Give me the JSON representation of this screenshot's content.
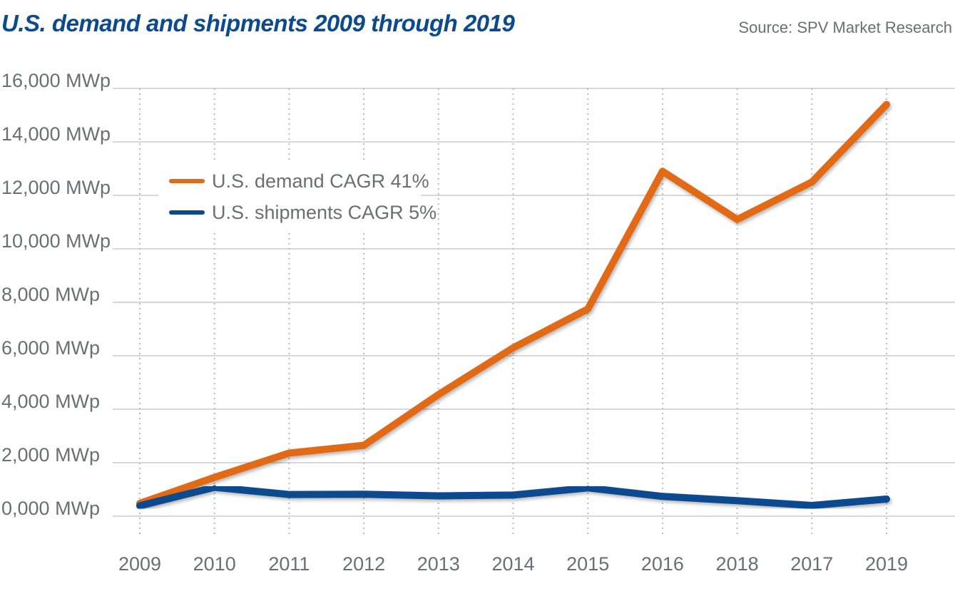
{
  "header": {
    "title": "U.S. demand and shipments 2009 through 2019",
    "source": "Source: SPV Market Research"
  },
  "colors": {
    "title": "#0b4a8f",
    "demand": "#e06b14",
    "shipments": "#0b4a8f",
    "grid": "#c9cccf",
    "text": "#6b6e72"
  },
  "chart_data": {
    "type": "line",
    "title": "U.S. demand and shipments 2009 through 2019",
    "xlabel": "",
    "ylabel": "",
    "categories": [
      "2009",
      "2010",
      "2011",
      "2012",
      "2013",
      "2014",
      "2015",
      "2016",
      "2018",
      "2017",
      "2019"
    ],
    "ylim": [
      0,
      16000
    ],
    "yticks": [
      0,
      2000,
      4000,
      6000,
      8000,
      10000,
      12000,
      14000,
      16000
    ],
    "ytick_labels": [
      "0,000 MWp",
      "2,000 MWp",
      "4,000 MWp",
      "6,000 MWp",
      "8,000 MWp",
      "10,000 MWp",
      "12,000 MWp",
      "14,000 MWp",
      "16,000 MWp"
    ],
    "grid": true,
    "legend_position": "top-left",
    "series": [
      {
        "name": "U.S. demand CAGR 41%",
        "color": "#e06b14",
        "values": [
          480,
          1450,
          2360,
          2650,
          4550,
          6300,
          7750,
          12900,
          11100,
          12500,
          15400
        ]
      },
      {
        "name": "U.S. shipments CAGR 5%",
        "color": "#0b4a8f",
        "values": [
          390,
          1080,
          810,
          820,
          760,
          790,
          1060,
          740,
          580,
          400,
          640
        ]
      }
    ]
  }
}
